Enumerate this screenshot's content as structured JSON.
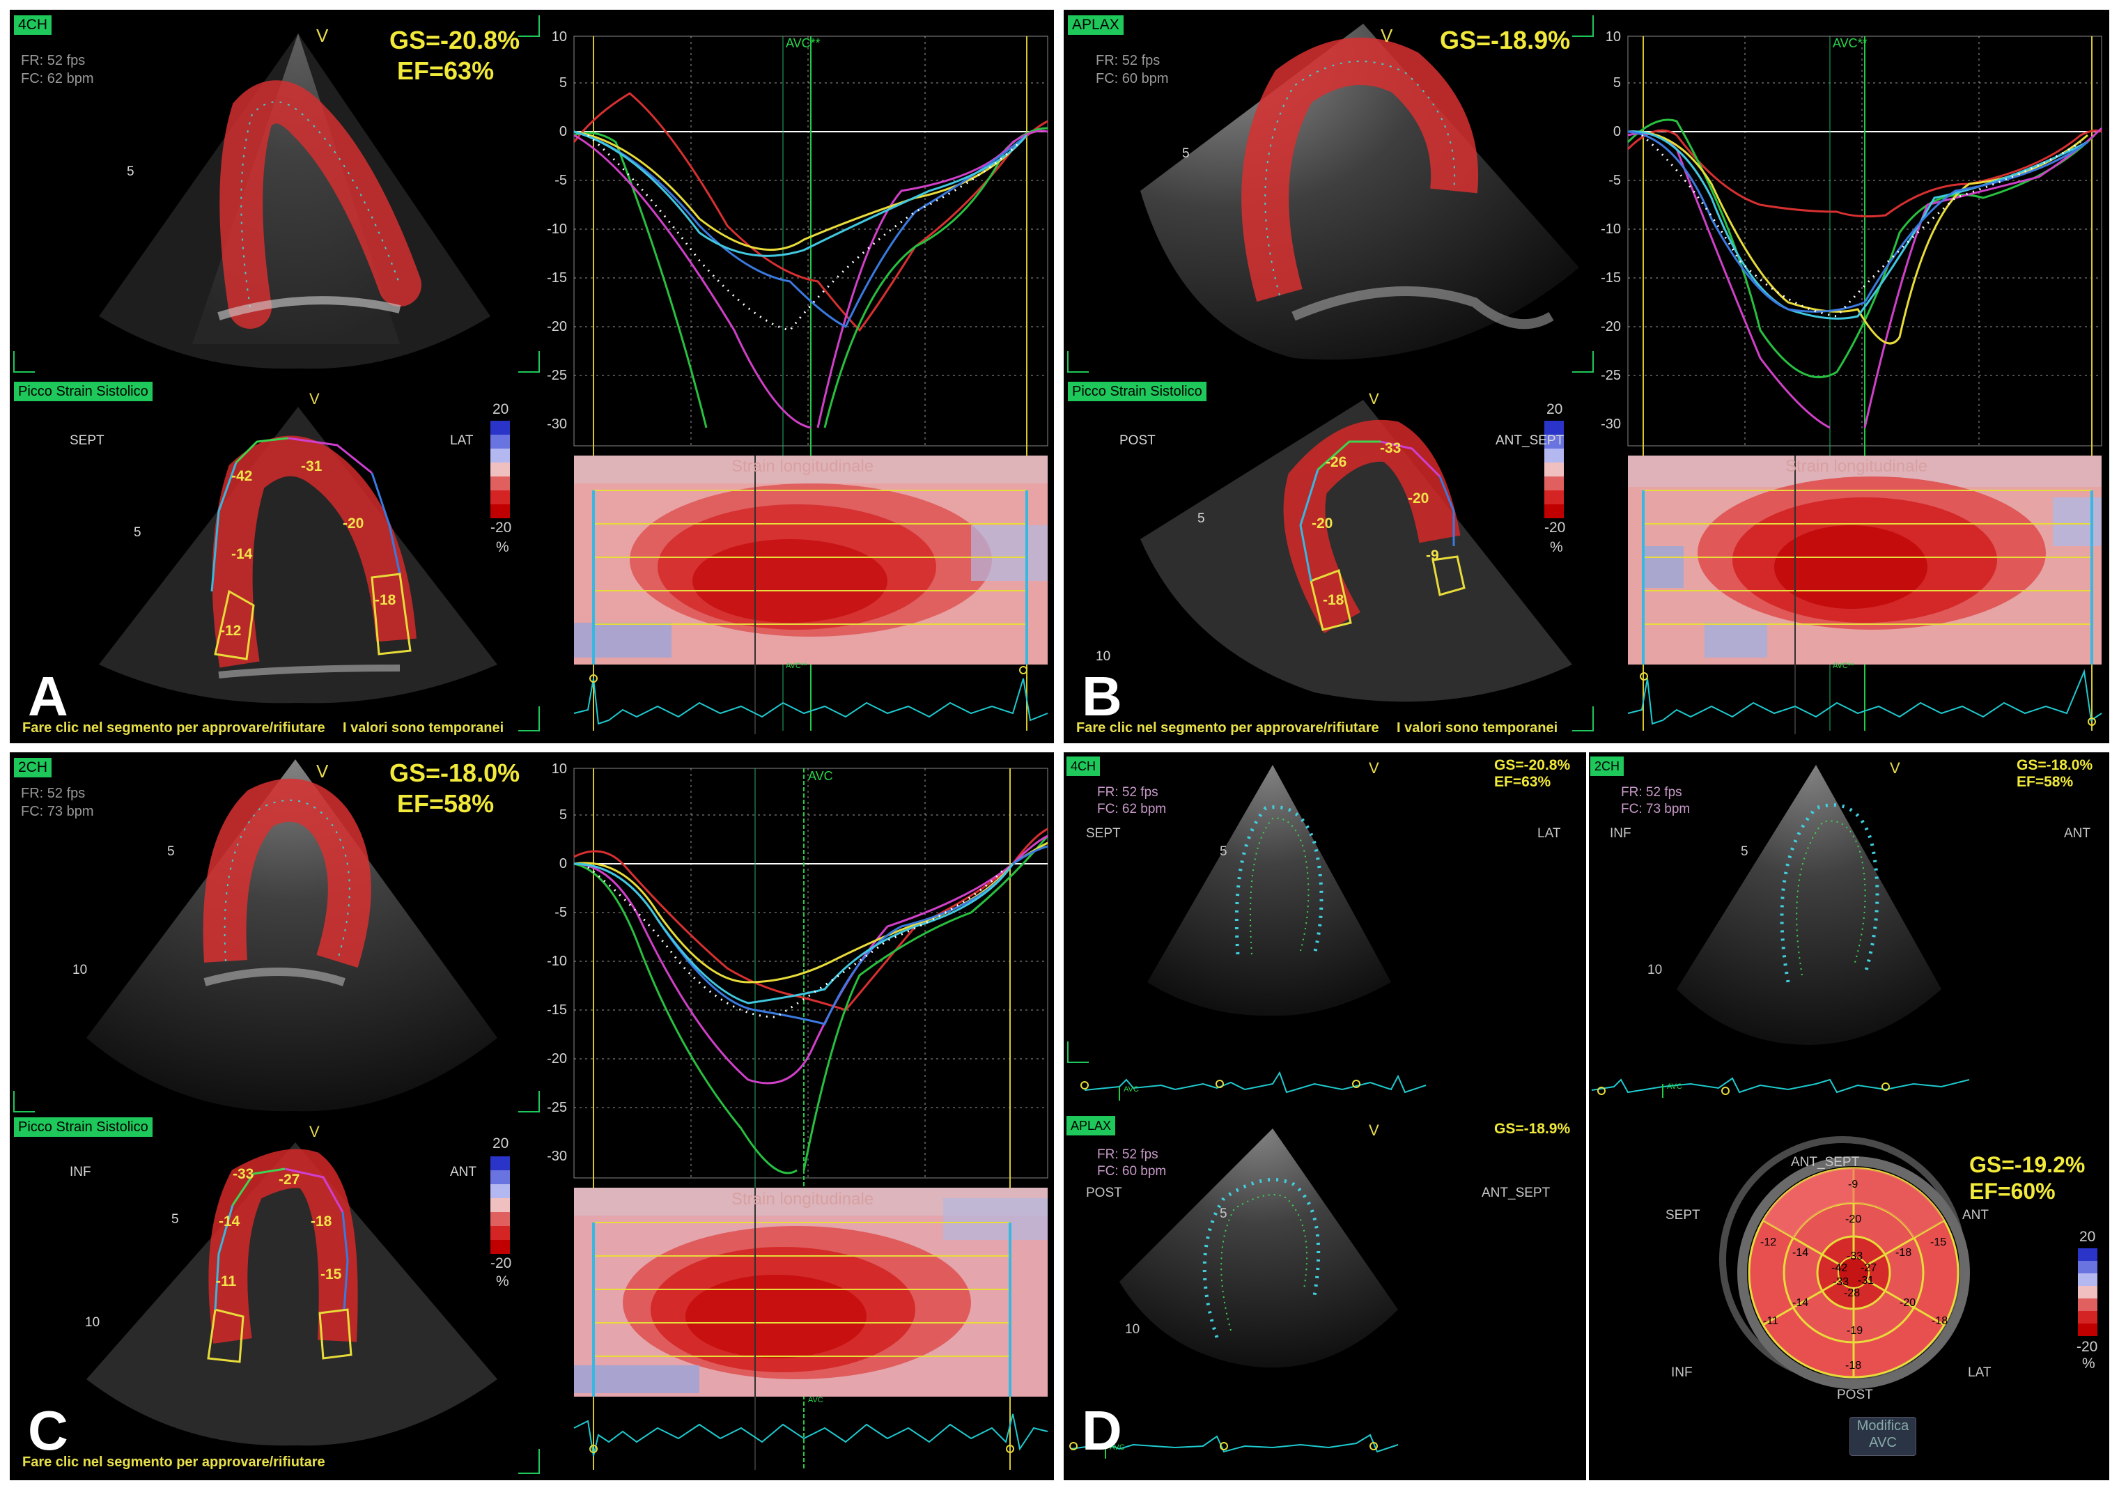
{
  "panels": {
    "A": {
      "letter": "A",
      "view": "4CH",
      "fr": "FR: 52 fps",
      "fc": "FC: 62 bpm",
      "gs": "GS=-20.8%",
      "ef": "EF=63%",
      "v": "V",
      "depth5": "5",
      "tag2": "Picco Strain Sistolico",
      "wall_left": "SEPT",
      "wall_right": "LAT",
      "segments": [
        "-42",
        "-31",
        "-20",
        "-14",
        "-18",
        "-12"
      ],
      "scale_top": "20",
      "scale_bottom": "-20",
      "scale_unit": "%",
      "map_title": "Strain longitudinale",
      "avc": "AVC**",
      "bottom_text": "Fare clic nel segmento per approvare/rifiutare",
      "bottom_text2": "I valori sono temporanei",
      "yticks": [
        "10",
        "5",
        "0",
        "-5",
        "-10",
        "-15",
        "-20",
        "-25",
        "-30"
      ]
    },
    "B": {
      "letter": "B",
      "view": "APLAX",
      "fr": "FR: 52 fps",
      "fc": "FC: 60 bpm",
      "gs": "GS=-18.9%",
      "v": "V",
      "depth5": "5",
      "depth10": "10",
      "tag2": "Picco Strain Sistolico",
      "wall_left": "POST",
      "wall_right": "ANT_SEPT",
      "segments": [
        "-26",
        "-33",
        "-20",
        "-20",
        "-9",
        "-18"
      ],
      "scale_top": "20",
      "scale_bottom": "-20",
      "scale_unit": "%",
      "map_title": "Strain longitudinale",
      "avc": "AVC**",
      "bottom_text": "Fare clic nel segmento per approvare/rifiutare",
      "bottom_text2": "I valori sono temporanei",
      "yticks": [
        "10",
        "5",
        "0",
        "-5",
        "-10",
        "-15",
        "-20",
        "-25",
        "-30"
      ]
    },
    "C": {
      "letter": "C",
      "view": "2CH",
      "fr": "FR: 52 fps",
      "fc": "FC: 73 bpm",
      "gs": "GS=-18.0%",
      "ef": "EF=58%",
      "v": "V",
      "depth5": "5",
      "depth10": "10",
      "tag2": "Picco Strain Sistolico",
      "wall_left": "INF",
      "wall_right": "ANT",
      "segments": [
        "-33",
        "-27",
        "-14",
        "-18",
        "-11",
        "-15"
      ],
      "scale_top": "20",
      "scale_bottom": "-20",
      "scale_unit": "%",
      "map_title": "Strain longitudinale",
      "avc": "AVC",
      "bottom_text": "Fare clic nel segmento per approvare/rifiutare",
      "yticks": [
        "10",
        "5",
        "0",
        "-5",
        "-10",
        "-15",
        "-20",
        "-25",
        "-30"
      ]
    },
    "D": {
      "letter": "D",
      "q1": {
        "view": "4CH",
        "fr": "FR: 52 fps",
        "fc": "FC: 62 bpm",
        "gs": "GS=-20.8%",
        "ef": "EF=63%",
        "left": "SEPT",
        "right": "LAT",
        "v": "V",
        "depth": "5"
      },
      "q2": {
        "view": "2CH",
        "fr": "FR: 52 fps",
        "fc": "FC: 73 bpm",
        "gs": "GS=-18.0%",
        "ef": "EF=58%",
        "left": "INF",
        "right": "ANT",
        "v": "V",
        "depth": "5",
        "depth10": "10"
      },
      "q3": {
        "view": "APLAX",
        "fr": "FR: 52 fps",
        "fc": "FC: 60 bpm",
        "gs": "GS=-18.9%",
        "left": "POST",
        "right": "ANT_SEPT",
        "v": "V",
        "depth": "5",
        "depth10": "10"
      },
      "avc": "AVC",
      "bullseye": {
        "gs": "GS=-19.2%",
        "ef": "EF=60%",
        "labels": {
          "ant_sept": "ANT_SEPT",
          "ant": "ANT",
          "sept": "SEPT",
          "inf": "INF",
          "lat": "LAT",
          "post": "POST"
        },
        "values": [
          "-9",
          "-12",
          "-15",
          "-20",
          "-14",
          "-18",
          "-33",
          "-27",
          "-42",
          "-31",
          "-33",
          "-28",
          "-14",
          "-20",
          "-11",
          "-19",
          "-18",
          "-18"
        ],
        "scale_top": "20",
        "scale_bottom": "-20",
        "scale_unit": "%"
      },
      "button": {
        "line1": "Modifica",
        "line2": "AVC"
      }
    }
  },
  "colors": {
    "segment_red": "#d42424",
    "yellow": "#f2ea3a",
    "green_label": "#1ec85a",
    "ecg": "#1ecbd0",
    "avc_line": "#22cc44"
  }
}
